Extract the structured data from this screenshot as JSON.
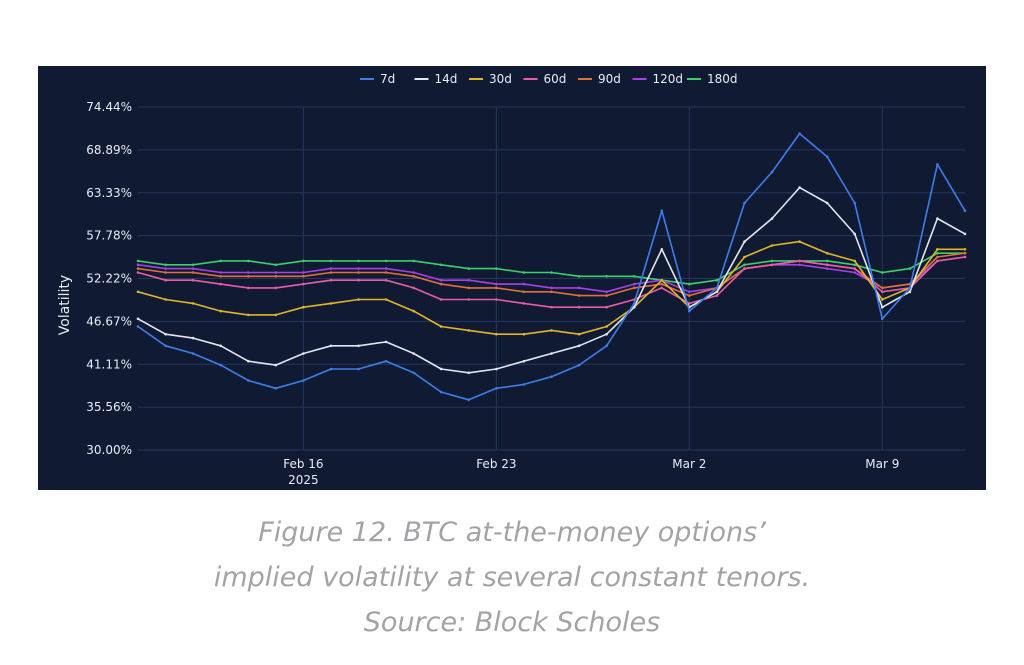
{
  "chart_data": {
    "type": "line",
    "title": "",
    "xlabel": "",
    "ylabel": "Volatility",
    "ylim": [
      30.0,
      74.44
    ],
    "y_ticks": [
      "74.44%",
      "68.89%",
      "63.33%",
      "57.78%",
      "52.22%",
      "46.67%",
      "41.11%",
      "35.56%",
      "30.00%"
    ],
    "x_ticks": [
      {
        "label": "Feb 16",
        "sub": "2025",
        "date": "2025-02-16"
      },
      {
        "label": "Feb 23",
        "sub": "",
        "date": "2025-02-23"
      },
      {
        "label": "Mar 2",
        "sub": "",
        "date": "2025-03-02"
      },
      {
        "label": "Mar 9",
        "sub": "",
        "date": "2025-03-09"
      }
    ],
    "xlim": [
      "2025-02-10",
      "2025-03-12"
    ],
    "grid": true,
    "legend_position": "top-center",
    "x": [
      "2025-02-10",
      "2025-02-11",
      "2025-02-12",
      "2025-02-13",
      "2025-02-14",
      "2025-02-15",
      "2025-02-16",
      "2025-02-17",
      "2025-02-18",
      "2025-02-19",
      "2025-02-20",
      "2025-02-21",
      "2025-02-22",
      "2025-02-23",
      "2025-02-24",
      "2025-02-25",
      "2025-02-26",
      "2025-02-27",
      "2025-02-28",
      "2025-03-01",
      "2025-03-02",
      "2025-03-03",
      "2025-03-04",
      "2025-03-05",
      "2025-03-06",
      "2025-03-07",
      "2025-03-08",
      "2025-03-09",
      "2025-03-10",
      "2025-03-11",
      "2025-03-12"
    ],
    "series": [
      {
        "name": "7d",
        "color": "#3d7ee8",
        "values": [
          46.0,
          43.5,
          42.5,
          41.0,
          39.0,
          38.0,
          39.0,
          40.5,
          40.5,
          41.5,
          40.0,
          37.5,
          36.5,
          38.0,
          38.5,
          39.5,
          41.0,
          43.5,
          49.0,
          61.0,
          48.0,
          51.0,
          62.0,
          66.0,
          71.0,
          68.0,
          62.0,
          47.0,
          51.0,
          67.0,
          61.0
        ]
      },
      {
        "name": "14d",
        "color": "#e2e6ee",
        "values": [
          47.0,
          45.0,
          44.5,
          43.5,
          41.5,
          41.0,
          42.5,
          43.5,
          43.5,
          44.0,
          42.5,
          40.5,
          40.0,
          40.5,
          41.5,
          42.5,
          43.5,
          45.0,
          48.5,
          56.0,
          48.5,
          50.5,
          57.0,
          60.0,
          64.0,
          62.0,
          58.0,
          48.5,
          50.5,
          60.0,
          58.0
        ]
      },
      {
        "name": "30d",
        "color": "#e0b52c",
        "values": [
          50.5,
          49.5,
          49.0,
          48.0,
          47.5,
          47.5,
          48.5,
          49.0,
          49.5,
          49.5,
          48.0,
          46.0,
          45.5,
          45.0,
          45.0,
          45.5,
          45.0,
          46.0,
          48.5,
          52.0,
          48.5,
          50.5,
          55.0,
          56.5,
          57.0,
          55.5,
          54.5,
          49.5,
          51.0,
          56.0,
          56.0
        ]
      },
      {
        "name": "60d",
        "color": "#e85da4",
        "values": [
          53.0,
          52.0,
          52.0,
          51.5,
          51.0,
          51.0,
          51.5,
          52.0,
          52.0,
          52.0,
          51.0,
          49.5,
          49.5,
          49.5,
          49.0,
          48.5,
          48.5,
          48.5,
          49.5,
          51.0,
          49.0,
          50.0,
          53.5,
          54.0,
          54.5,
          54.0,
          53.5,
          50.5,
          51.0,
          54.5,
          55.0
        ]
      },
      {
        "name": "90d",
        "color": "#e0703a",
        "values": [
          53.5,
          53.0,
          53.0,
          52.5,
          52.5,
          52.5,
          52.5,
          53.0,
          53.0,
          53.0,
          52.5,
          51.5,
          51.0,
          51.0,
          50.5,
          50.5,
          50.0,
          50.0,
          51.0,
          51.5,
          50.0,
          51.0,
          53.5,
          54.0,
          54.5,
          54.0,
          53.5,
          51.0,
          51.5,
          55.0,
          55.5
        ]
      },
      {
        "name": "120d",
        "color": "#a641e6",
        "values": [
          54.0,
          53.5,
          53.5,
          53.0,
          53.0,
          53.0,
          53.0,
          53.5,
          53.5,
          53.5,
          53.0,
          52.0,
          52.0,
          51.5,
          51.5,
          51.0,
          51.0,
          50.5,
          51.5,
          52.0,
          50.5,
          51.0,
          53.5,
          54.0,
          54.0,
          53.5,
          53.0,
          51.0,
          51.5,
          54.5,
          55.0
        ]
      },
      {
        "name": "180d",
        "color": "#3ccf6a",
        "values": [
          54.5,
          54.0,
          54.0,
          54.5,
          54.5,
          54.0,
          54.5,
          54.5,
          54.5,
          54.5,
          54.5,
          54.0,
          53.5,
          53.5,
          53.0,
          53.0,
          52.5,
          52.5,
          52.5,
          52.0,
          51.5,
          52.0,
          54.0,
          54.5,
          54.5,
          54.5,
          54.0,
          53.0,
          53.5,
          55.5,
          55.5
        ]
      }
    ]
  },
  "caption": {
    "line1": "Figure 12. BTC at-the-money options’",
    "line2": "implied volatility at several constant tenors.",
    "line3": "Source: Block Scholes"
  }
}
